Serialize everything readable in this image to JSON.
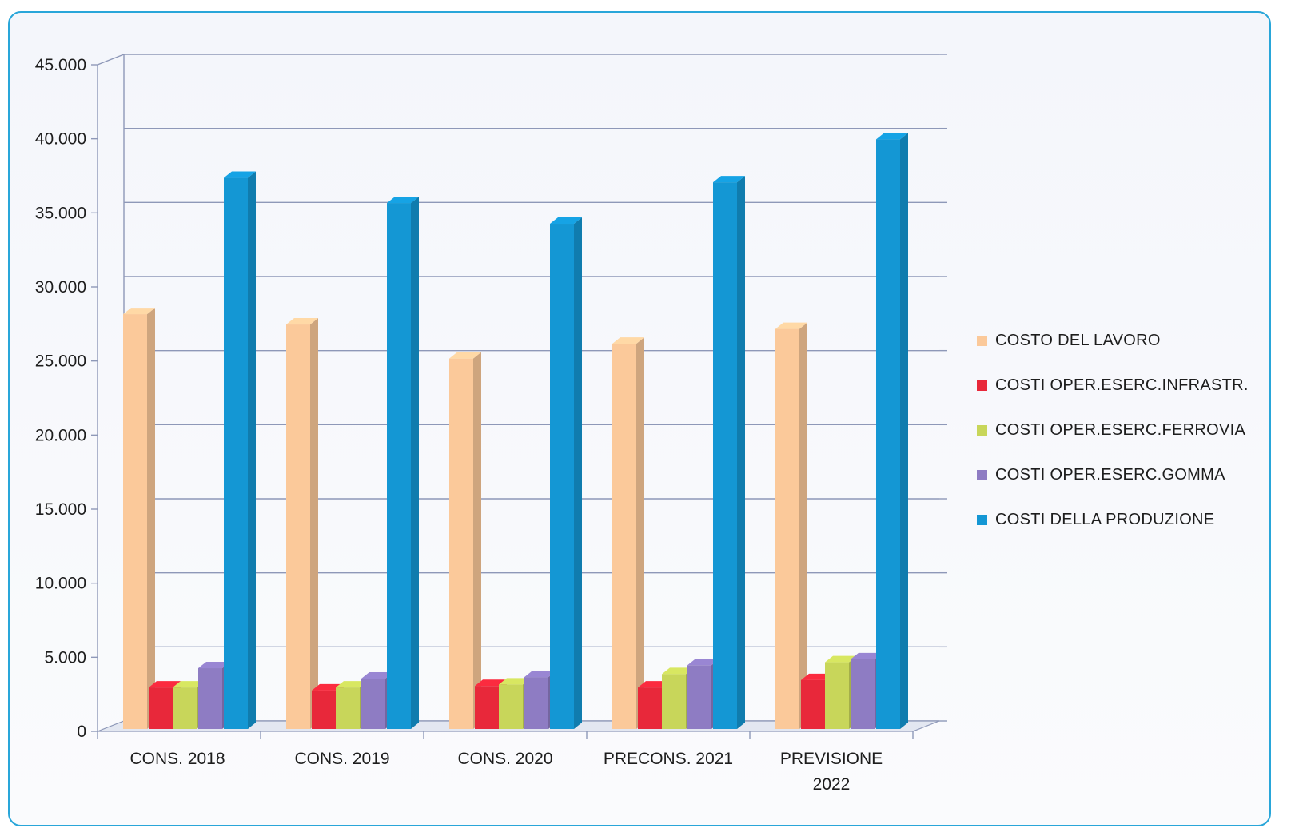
{
  "chart_data": {
    "type": "bar",
    "categories": [
      "CONS.  2018",
      "CONS. 2019",
      "CONS. 2020",
      "PRECONS. 2021",
      "PREVISIONE 2022"
    ],
    "category_lines": [
      [
        "CONS.  2018"
      ],
      [
        "CONS. 2019"
      ],
      [
        "CONS. 2020"
      ],
      [
        "PRECONS. 2021"
      ],
      [
        "PREVISIONE",
        "2022"
      ]
    ],
    "series": [
      {
        "name": "COSTO DEL LAVORO",
        "color": "#fbc99a",
        "values": [
          28000,
          27300,
          25000,
          26000,
          27000
        ]
      },
      {
        "name": "COSTI OPER.ESERC.INFRASTR.",
        "color": "#e8283a",
        "values": [
          2800,
          2600,
          2900,
          2800,
          3300
        ]
      },
      {
        "name": "COSTI OPER.ESERC.FERROVIA",
        "color": "#c8d65a",
        "values": [
          2800,
          2800,
          3000,
          3700,
          4500
        ]
      },
      {
        "name": "COSTI OPER.ESERC.GOMMA",
        "color": "#8e7cc3",
        "values": [
          4100,
          3400,
          3500,
          4300,
          4700
        ]
      },
      {
        "name": "COSTI DELLA PRODUZIONE",
        "color": "#1497d4",
        "values": [
          37200,
          35500,
          34100,
          36900,
          39800
        ]
      }
    ],
    "ylim": [
      0,
      45000
    ],
    "yticks": [
      0,
      5000,
      10000,
      15000,
      20000,
      25000,
      30000,
      35000,
      40000,
      45000
    ],
    "ytick_labels": [
      "0",
      "5.000",
      "10.000",
      "15.000",
      "20.000",
      "25.000",
      "30.000",
      "35.000",
      "40.000",
      "45.000"
    ],
    "grid": true,
    "legend_position": "right",
    "title": "",
    "xlabel": "",
    "ylabel": ""
  }
}
